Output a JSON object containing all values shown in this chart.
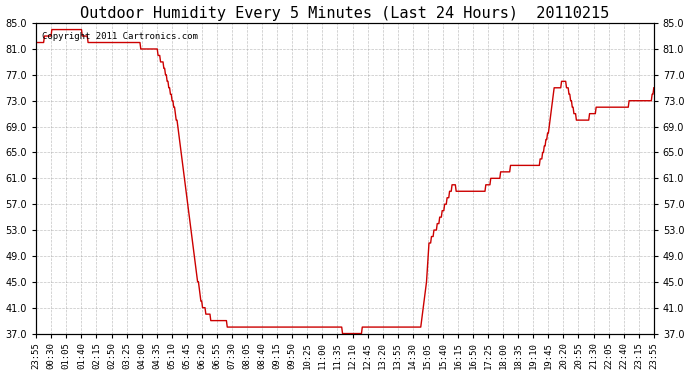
{
  "title": "Outdoor Humidity Every 5 Minutes (Last 24 Hours)  20110215",
  "copyright_text": "Copyright 2011 Cartronics.com",
  "line_color": "#cc0000",
  "background_color": "#ffffff",
  "grid_color": "#aaaaaa",
  "ylim": [
    37.0,
    85.0
  ],
  "yticks": [
    37.0,
    41.0,
    45.0,
    49.0,
    53.0,
    57.0,
    61.0,
    65.0,
    69.0,
    73.0,
    77.0,
    81.0,
    85.0
  ],
  "xtick_labels": [
    "23:55",
    "00:30",
    "01:05",
    "01:40",
    "02:15",
    "02:50",
    "03:25",
    "04:00",
    "04:35",
    "05:10",
    "05:45",
    "06:20",
    "06:55",
    "07:30",
    "08:05",
    "08:40",
    "09:15",
    "09:50",
    "10:25",
    "11:00",
    "11:35",
    "12:10",
    "12:45",
    "13:20",
    "13:55",
    "14:30",
    "15:05",
    "15:40",
    "16:15",
    "16:50",
    "17:25",
    "18:00",
    "18:35",
    "19:10",
    "19:45",
    "20:20",
    "20:55",
    "21:30",
    "22:05",
    "22:40",
    "23:15",
    "23:55"
  ],
  "humidity_values": [
    82,
    82,
    82,
    82,
    82,
    82,
    82,
    82,
    82,
    82,
    83,
    83,
    83,
    83,
    83,
    83,
    83,
    83,
    83,
    84,
    84,
    84,
    84,
    84,
    84,
    84,
    84,
    84,
    84,
    84,
    84,
    84,
    84,
    84,
    84,
    84,
    84,
    84,
    84,
    84,
    84,
    84,
    84,
    84,
    84,
    84,
    84,
    84,
    84,
    84,
    84,
    84,
    84,
    84,
    84,
    84,
    83,
    83,
    83,
    83,
    83,
    83,
    83,
    82,
    82,
    82,
    82,
    82,
    82,
    82,
    82,
    82,
    82,
    82,
    82,
    82,
    82,
    82,
    82,
    82,
    82,
    82,
    82,
    82,
    82,
    82,
    82,
    82,
    82,
    82,
    82,
    82,
    82,
    82,
    82,
    82,
    82,
    82,
    82,
    82,
    82,
    82,
    82,
    82,
    82,
    82,
    82,
    82,
    82,
    82,
    82,
    82,
    82,
    82,
    82,
    82,
    82,
    82,
    82,
    82,
    82,
    82,
    82,
    82,
    82,
    82,
    82,
    81,
    81,
    81,
    81,
    81,
    81,
    81,
    81,
    81,
    81,
    81,
    81,
    81,
    81,
    81,
    81,
    81,
    81,
    81,
    81,
    81,
    80,
    80,
    80,
    79,
    79,
    79,
    79,
    78,
    78,
    77,
    77,
    76,
    76,
    75,
    75,
    74,
    74,
    73,
    73,
    72,
    72,
    71,
    70,
    70,
    69,
    68,
    67,
    66,
    65,
    64,
    63,
    62,
    61,
    60,
    59,
    58,
    57,
    56,
    55,
    54,
    53,
    52,
    51,
    50,
    49,
    48,
    47,
    46,
    45,
    45,
    44,
    43,
    42,
    42,
    41,
    41,
    41,
    41,
    40,
    40,
    40,
    40,
    40,
    40,
    39,
    39,
    39,
    39,
    39,
    39,
    39,
    39,
    39,
    39,
    39,
    39,
    39,
    39,
    39,
    39,
    39,
    39,
    39,
    39,
    38,
    38,
    38,
    38,
    38,
    38,
    38,
    38,
    38,
    38,
    38,
    38,
    38,
    38,
    38,
    38,
    38,
    38,
    38,
    38,
    38,
    38,
    38,
    38,
    38,
    38,
    38,
    38,
    38,
    38,
    38,
    38,
    38,
    38,
    38,
    38,
    38,
    38,
    38,
    38,
    38,
    38,
    38,
    38,
    38,
    38,
    38,
    38,
    38,
    38,
    38,
    38,
    38,
    38,
    38,
    38,
    38,
    38,
    38,
    38,
    38,
    38,
    38,
    38,
    38,
    38,
    38,
    38,
    38,
    38,
    38,
    38,
    38,
    38,
    38,
    38,
    38,
    38,
    38,
    38,
    38,
    38,
    38,
    38,
    38,
    38,
    38,
    38,
    38,
    38,
    38,
    38,
    38,
    38,
    38,
    38,
    38,
    38,
    38,
    38,
    38,
    38,
    38,
    38,
    38,
    38,
    38,
    38,
    38,
    38,
    38,
    38,
    38,
    38,
    38,
    38,
    38,
    38,
    38,
    38,
    38,
    38,
    38,
    38,
    38,
    38,
    38,
    38,
    38,
    38,
    38,
    38,
    38,
    38,
    38,
    38,
    38,
    38,
    38,
    38,
    37,
    37,
    37,
    37,
    37,
    37,
    37,
    37,
    37,
    37,
    37,
    37,
    37,
    37,
    37,
    37,
    37,
    37,
    37,
    37,
    37,
    37,
    37,
    37,
    38,
    38,
    38,
    38,
    38,
    38,
    38,
    38,
    38,
    38,
    38,
    38,
    38,
    38,
    38,
    38,
    38,
    38,
    38,
    38,
    38,
    38,
    38,
    38,
    38,
    38,
    38,
    38,
    38,
    38,
    38,
    38,
    38,
    38,
    38,
    38,
    38,
    38,
    38,
    38,
    38,
    38,
    38,
    38,
    38,
    38,
    38,
    38,
    38,
    38,
    38,
    38,
    38,
    38,
    38,
    38,
    38,
    38,
    38,
    38,
    38,
    38,
    38,
    38,
    38,
    38,
    38,
    38,
    38,
    38,
    38,
    38,
    39,
    40,
    41,
    42,
    43,
    44,
    45,
    47,
    49,
    51,
    51,
    51,
    52,
    52,
    52,
    53,
    53,
    53,
    53,
    54,
    54,
    54,
    55,
    55,
    55,
    56,
    56,
    56,
    57,
    57,
    57,
    58,
    58,
    58,
    59,
    59,
    59,
    60,
    60,
    60,
    60,
    60,
    59,
    59,
    59,
    59,
    59,
    59,
    59,
    59,
    59,
    59,
    59,
    59,
    59,
    59,
    59,
    59,
    59,
    59,
    59,
    59,
    59,
    59,
    59,
    59,
    59,
    59,
    59,
    59,
    59,
    59,
    59,
    59,
    59,
    59,
    59,
    59,
    60,
    60,
    60,
    60,
    60,
    60,
    61,
    61,
    61,
    61,
    61,
    61,
    61,
    61,
    61,
    61,
    61,
    61,
    62,
    62,
    62,
    62,
    62,
    62,
    62,
    62,
    62,
    62,
    62,
    62,
    63,
    63,
    63,
    63,
    63,
    63,
    63,
    63,
    63,
    63,
    63,
    63,
    63,
    63,
    63,
    63,
    63,
    63,
    63,
    63,
    63,
    63,
    63,
    63,
    63,
    63,
    63,
    63,
    63,
    63,
    63,
    63,
    63,
    63,
    63,
    63,
    64,
    64,
    64,
    65,
    65,
    66,
    66,
    67,
    67,
    68,
    68,
    69,
    70,
    71,
    72,
    73,
    74,
    75,
    75,
    75,
    75,
    75,
    75,
    75,
    75,
    75,
    76,
    76,
    76,
    76,
    76,
    76,
    75,
    75,
    75,
    74,
    74,
    73,
    73,
    72,
    72,
    71,
    71,
    71,
    70,
    70,
    70,
    70,
    70,
    70,
    70,
    70,
    70,
    70,
    70,
    70,
    70,
    70,
    70,
    70,
    71,
    71,
    71,
    71,
    71,
    71,
    71,
    71,
    72,
    72,
    72,
    72,
    72,
    72,
    72,
    72,
    72,
    72,
    72,
    72,
    72,
    72,
    72,
    72,
    72,
    72,
    72,
    72,
    72,
    72,
    72,
    72,
    72,
    72,
    72,
    72,
    72,
    72,
    72,
    72,
    72,
    72,
    72,
    72,
    72,
    72,
    72,
    72,
    73,
    73,
    73,
    73,
    73,
    73,
    73,
    73,
    73,
    73,
    73,
    73,
    73,
    73,
    73,
    73,
    73,
    73,
    73,
    73,
    73,
    73,
    73,
    73,
    73,
    73,
    73,
    73,
    74,
    74,
    75
  ]
}
